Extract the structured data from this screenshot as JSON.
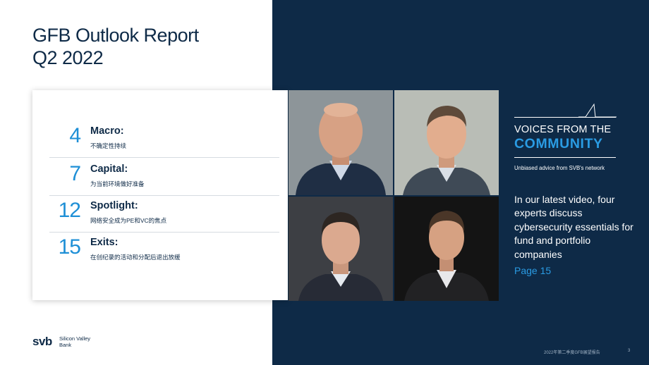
{
  "report": {
    "title_line1": "GFB Outlook Report",
    "title_line2": "Q2 2022"
  },
  "toc": [
    {
      "page": "4",
      "heading": "Macro:",
      "subtitle": "不确定性持续"
    },
    {
      "page": "7",
      "heading": "Capital:",
      "subtitle": "为当前环境做好准备"
    },
    {
      "page": "12",
      "heading": "Spotlight:",
      "subtitle": "网络安全成为PE和VC的焦点"
    },
    {
      "page": "15",
      "heading": "Exits:",
      "subtitle": "在创纪录的活动和分配后退出放缓"
    }
  ],
  "feature": {
    "kicker_line1": "VOICES FROM THE",
    "kicker_line2": "COMMUNITY",
    "kicker_sub": "Unbiased advice from SVB's network",
    "body": "In our latest video, four experts discuss cybersecurity essentials for fund and portfolio companies",
    "page_link": "Page 15"
  },
  "brand": {
    "logo_mark": "svb",
    "logo_line1": "Silicon Valley",
    "logo_line2": "Bank"
  },
  "footer": {
    "report_name": "2022年第二季度GFB展望报告",
    "page_number": "3"
  },
  "photos": [
    {
      "name": "expert-photo-1",
      "bg": "#8d9599",
      "suit": "#1f2e44",
      "skin": "#d7a184",
      "hair": "none"
    },
    {
      "name": "expert-photo-2",
      "bg": "#b9bdb6",
      "suit": "#3f4a56",
      "skin": "#e2ad8e",
      "hair": "#5e4a3a"
    },
    {
      "name": "expert-photo-3",
      "bg": "#3d3f44",
      "suit": "#272b36",
      "skin": "#dba98f",
      "hair": "#2d2622"
    },
    {
      "name": "expert-photo-4",
      "bg": "#141414",
      "suit": "#222224",
      "skin": "#d6a182",
      "hair": "#4a3628"
    }
  ],
  "colors": {
    "navy": "#0e2a47",
    "accent_blue": "#2a9be3",
    "toc_number_blue": "#1e8fd6"
  }
}
